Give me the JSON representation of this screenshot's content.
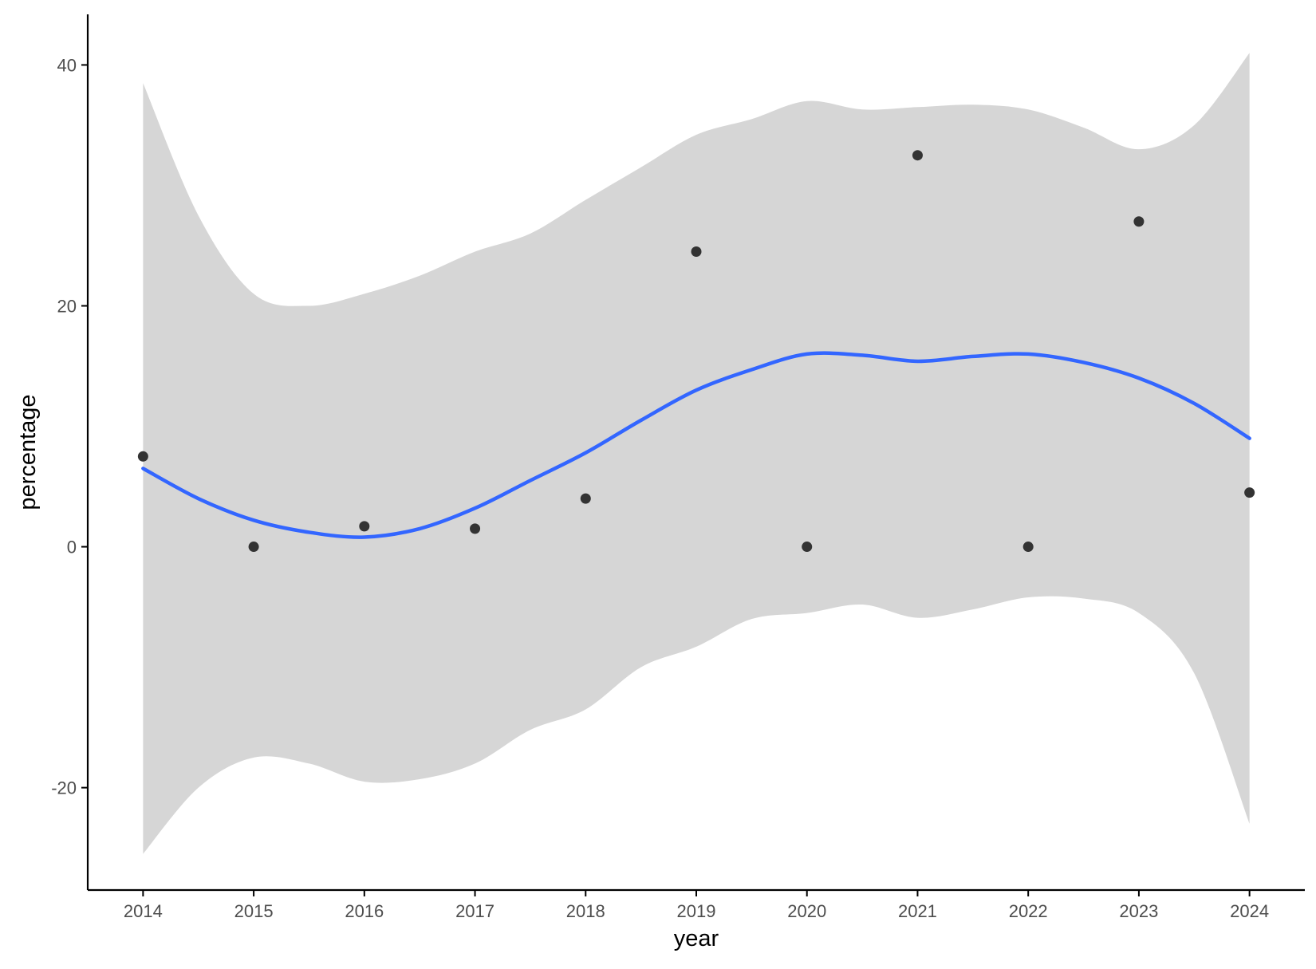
{
  "chart_data": {
    "type": "scatter",
    "title": "",
    "xlabel": "year",
    "ylabel": "percentage",
    "xlim": [
      2013.5,
      2024.5
    ],
    "ylim": [
      -28.5,
      44.2
    ],
    "x_ticks": [
      2014,
      2015,
      2016,
      2017,
      2018,
      2019,
      2020,
      2021,
      2022,
      2023,
      2024
    ],
    "y_ticks": [
      -20,
      0,
      20,
      40
    ],
    "grid": false,
    "legend": "none",
    "points": {
      "x": [
        2014,
        2015,
        2016,
        2017,
        2018,
        2019,
        2020,
        2021,
        2022,
        2023,
        2024
      ],
      "y": [
        7.5,
        0,
        1.7,
        1.5,
        4.0,
        24.5,
        0,
        32.5,
        0,
        27.0,
        4.5
      ]
    },
    "smooth": {
      "x": [
        2014,
        2014.5,
        2015,
        2015.5,
        2016,
        2016.5,
        2017,
        2017.5,
        2018,
        2018.5,
        2019,
        2019.5,
        2020,
        2020.5,
        2021,
        2021.5,
        2022,
        2022.5,
        2023,
        2023.5,
        2024
      ],
      "y": [
        6.5,
        4.0,
        2.2,
        1.2,
        0.8,
        1.5,
        3.2,
        5.5,
        7.8,
        10.5,
        13.0,
        14.7,
        16.0,
        15.9,
        15.4,
        15.8,
        16.0,
        15.3,
        14.0,
        11.9,
        9.0
      ],
      "lower": [
        -25.5,
        -20.0,
        -17.5,
        -18.0,
        -19.5,
        -19.3,
        -18.0,
        -15.2,
        -13.5,
        -10.0,
        -8.3,
        -6.0,
        -5.5,
        -4.8,
        -5.9,
        -5.2,
        -4.2,
        -4.3,
        -5.5,
        -10.5,
        -23.0
      ],
      "upper": [
        38.5,
        27.5,
        21.0,
        20.0,
        21.0,
        22.5,
        24.5,
        26.0,
        28.8,
        31.5,
        34.2,
        35.5,
        37.0,
        36.3,
        36.5,
        36.7,
        36.3,
        34.8,
        33.0,
        35.0,
        41.0
      ]
    },
    "colors": {
      "points": "#333333",
      "line": "#3366ff",
      "ribbon": "#d6d6d6",
      "axis": "#000000",
      "tick_text": "#4d4d4d"
    }
  }
}
